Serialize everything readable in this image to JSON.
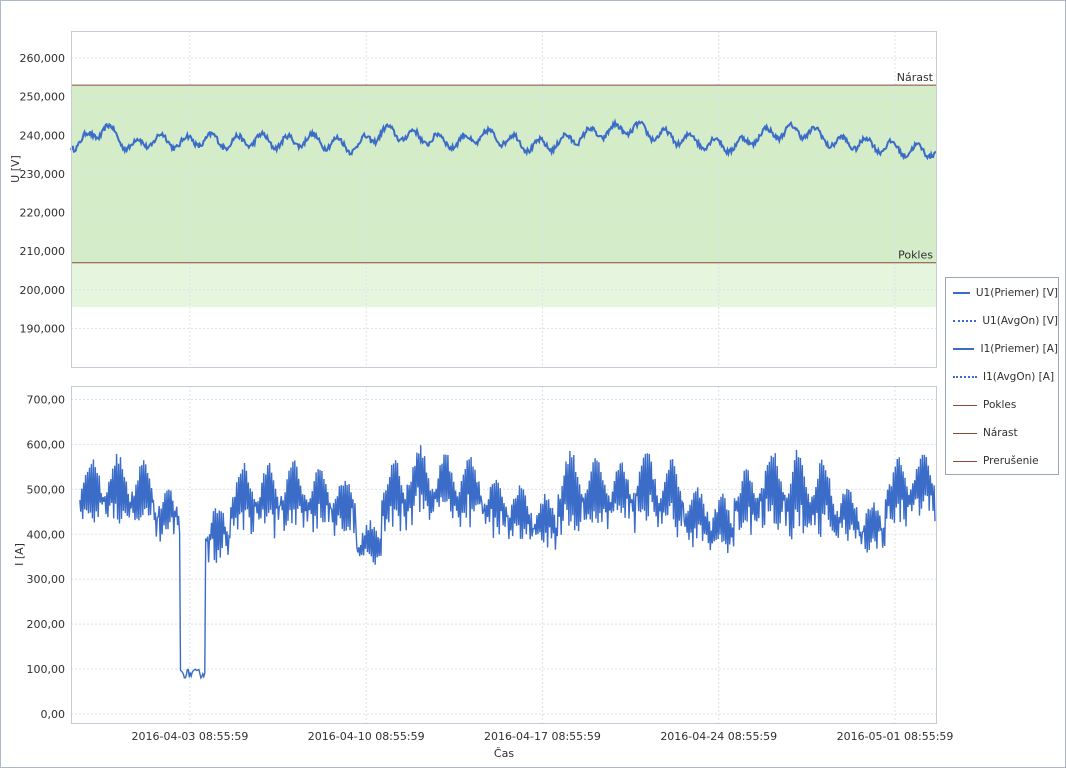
{
  "chart_data": [
    {
      "type": "line",
      "ylabel": "U [V]",
      "ylim": [
        180,
        267
      ],
      "yticks": [
        "190,000",
        "200,000",
        "210,000",
        "220,000",
        "230,000",
        "240,000",
        "250,000",
        "260,000"
      ],
      "ytick_values": [
        190,
        200,
        210,
        220,
        230,
        240,
        250,
        260
      ],
      "limits": [
        {
          "name": "Nárast",
          "value": 253,
          "color": "#8b4a3c"
        },
        {
          "name": "Pokles",
          "value": 207,
          "color": "#8b4a3c"
        }
      ],
      "bands": [
        {
          "from": 207,
          "to": 253,
          "color": "#d4ecc8"
        },
        {
          "from": 195.5,
          "to": 207,
          "color": "#e6f6de"
        }
      ],
      "series": [
        {
          "name": "U1(Priemer) [V]",
          "color": "#3a6cc8",
          "x": [
            "2016-03-30",
            "2016-03-31",
            "2016-04-01",
            "2016-04-02",
            "2016-04-03",
            "2016-04-04",
            "2016-04-05",
            "2016-04-06",
            "2016-04-07",
            "2016-04-08",
            "2016-04-09",
            "2016-04-10",
            "2016-04-11",
            "2016-04-12",
            "2016-04-13",
            "2016-04-14",
            "2016-04-15",
            "2016-04-16",
            "2016-04-17",
            "2016-04-18",
            "2016-04-19",
            "2016-04-20",
            "2016-04-21",
            "2016-04-22",
            "2016-04-23",
            "2016-04-24",
            "2016-04-25",
            "2016-04-26",
            "2016-04-27",
            "2016-04-28",
            "2016-04-29",
            "2016-04-30",
            "2016-05-01",
            "2016-05-02"
          ],
          "values": [
            238,
            242,
            237,
            239,
            238,
            239,
            238,
            239,
            238,
            239,
            238,
            237,
            241,
            240,
            239,
            238,
            240,
            239,
            237,
            238,
            240,
            241,
            242,
            240,
            239,
            238,
            237,
            240,
            241,
            241,
            238,
            238,
            237,
            236
          ]
        }
      ]
    },
    {
      "type": "line",
      "xlabel": "Čas",
      "ylabel": "I [A]",
      "ylim": [
        -20,
        730
      ],
      "yticks": [
        "0,00",
        "100,00",
        "200,00",
        "300,00",
        "400,00",
        "500,00",
        "600,00",
        "700,00"
      ],
      "ytick_values": [
        0,
        100,
        200,
        300,
        400,
        500,
        600,
        700
      ],
      "xticks": [
        "2016-04-03 08:55:59",
        "2016-04-10 08:55:59",
        "2016-04-17 08:55:59",
        "2016-04-24 08:55:59",
        "2016-05-01 08:55:59"
      ],
      "series": [
        {
          "name": "I1(Priemer) [A]",
          "color": "#3a6cc8",
          "x": [
            "2016-03-30",
            "2016-03-31",
            "2016-04-01",
            "2016-04-02",
            "2016-04-03",
            "2016-04-04",
            "2016-04-05",
            "2016-04-06",
            "2016-04-07",
            "2016-04-08",
            "2016-04-09",
            "2016-04-10",
            "2016-04-11",
            "2016-04-12",
            "2016-04-13",
            "2016-04-14",
            "2016-04-15",
            "2016-04-16",
            "2016-04-17",
            "2016-04-18",
            "2016-04-19",
            "2016-04-20",
            "2016-04-21",
            "2016-04-22",
            "2016-04-23",
            "2016-04-24",
            "2016-04-25",
            "2016-04-26",
            "2016-04-27",
            "2016-04-28",
            "2016-04-29",
            "2016-04-30",
            "2016-05-01",
            "2016-05-02"
          ],
          "peak": [
            560,
            570,
            555,
            500,
            100,
            460,
            550,
            555,
            560,
            550,
            520,
            420,
            560,
            590,
            580,
            570,
            520,
            500,
            480,
            580,
            570,
            560,
            590,
            560,
            500,
            480,
            540,
            580,
            580,
            560,
            500,
            470,
            560,
            580
          ],
          "trough": [
            400,
            395,
            390,
            360,
            80,
            320,
            370,
            360,
            370,
            380,
            380,
            330,
            380,
            400,
            390,
            390,
            380,
            370,
            350,
            370,
            380,
            380,
            370,
            360,
            360,
            340,
            380,
            380,
            360,
            370,
            360,
            340,
            390,
            410
          ]
        }
      ]
    }
  ],
  "legend": {
    "items": [
      {
        "label": "U1(Priemer) [V]",
        "style": "solid",
        "color": "#3a6cc8"
      },
      {
        "label": "U1(AvgOn) [V]",
        "style": "dotted",
        "color": "#3a6cc8"
      },
      {
        "label": "I1(Priemer) [A]",
        "style": "solid",
        "color": "#3a6cc8"
      },
      {
        "label": "I1(AvgOn) [A]",
        "style": "dotted",
        "color": "#3a6cc8"
      },
      {
        "label": "Pokles",
        "style": "thin",
        "color": "#8b4a3c"
      },
      {
        "label": "Nárast",
        "style": "thin",
        "color": "#8b4a3c"
      },
      {
        "label": "Prerušenie",
        "style": "thin",
        "color": "#8b4a3c"
      }
    ]
  }
}
